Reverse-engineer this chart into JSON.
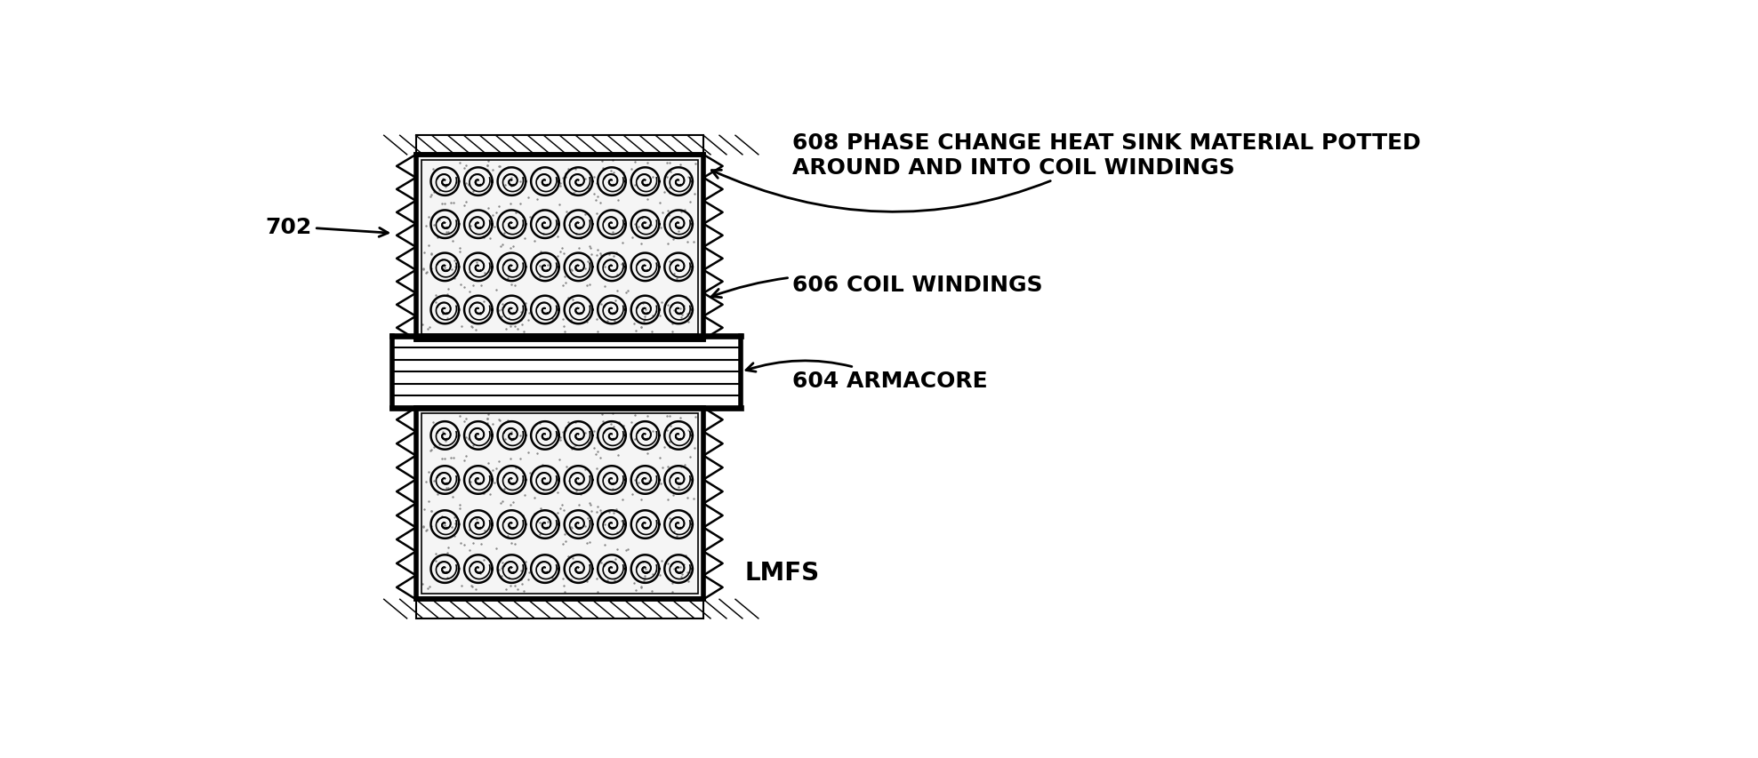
{
  "bg_color": "#ffffff",
  "line_color": "#000000",
  "labels": {
    "608": "608 PHASE CHANGE HEAT SINK MATERIAL POTTED\nAROUND AND INTO COIL WINDINGS",
    "606": "606 COIL WINDINGS",
    "604": "604 ARMACORE",
    "702": "702",
    "lmfs": "LMFS"
  },
  "figw": 19.77,
  "figh": 8.54,
  "dpi": 100
}
